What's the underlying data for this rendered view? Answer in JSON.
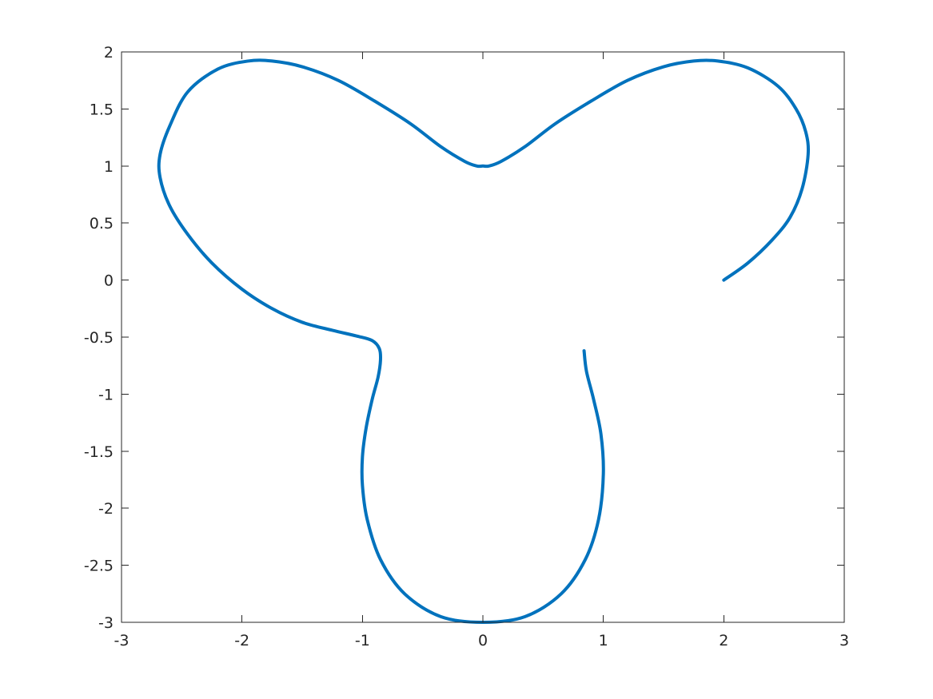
{
  "chart_data": {
    "type": "line",
    "title": "",
    "xlabel": "",
    "ylabel": "",
    "xlim": [
      -3,
      3
    ],
    "ylim": [
      -3,
      2
    ],
    "grid": false,
    "legend": "none",
    "xticks": [
      -3,
      -2,
      -1,
      0,
      1,
      2,
      3
    ],
    "xtick_labels": [
      "-3",
      "-2",
      "-1",
      "0",
      "1",
      "2",
      "3"
    ],
    "yticks": [
      2,
      1.5,
      1,
      0.5,
      0,
      -0.5,
      -1,
      -1.5,
      -2,
      -2.5,
      -3
    ],
    "ytick_labels": [
      "2",
      "1.5",
      "1",
      "0.5",
      "0",
      "-0.5",
      "-1",
      "-1.5",
      "-2",
      "-2.5",
      "-3"
    ],
    "series": [
      {
        "color": "#0072BD",
        "x": [
          2.0,
          2.2,
          2.4,
          2.55,
          2.65,
          2.7,
          2.68,
          2.6,
          2.45,
          2.2,
          1.95,
          1.75,
          1.5,
          1.2,
          0.9,
          0.6,
          0.35,
          0.15,
          0.05,
          0.0,
          -0.05,
          -0.15,
          -0.35,
          -0.6,
          -0.9,
          -1.2,
          -1.5,
          -1.75,
          -1.95,
          -2.2,
          -2.45,
          -2.6,
          -2.68,
          -2.68,
          -2.6,
          -2.45,
          -2.25,
          -2.0,
          -1.75,
          -1.5,
          -1.25,
          -1.05,
          -0.92,
          -0.86,
          -0.85,
          -0.87,
          -0.92,
          -0.97,
          -1.0,
          -1.0,
          -0.96,
          -0.85,
          -0.65,
          -0.35,
          0.0,
          0.35,
          0.65,
          0.85,
          0.96,
          1.0,
          0.98,
          0.92,
          0.86,
          0.84
        ],
        "y": [
          0.0,
          0.15,
          0.35,
          0.55,
          0.8,
          1.1,
          1.3,
          1.5,
          1.7,
          1.86,
          1.92,
          1.92,
          1.87,
          1.75,
          1.57,
          1.37,
          1.17,
          1.04,
          1.0,
          1.0,
          1.0,
          1.04,
          1.17,
          1.37,
          1.57,
          1.75,
          1.87,
          1.92,
          1.92,
          1.85,
          1.65,
          1.35,
          1.1,
          0.9,
          0.65,
          0.4,
          0.15,
          -0.08,
          -0.25,
          -0.37,
          -0.44,
          -0.49,
          -0.53,
          -0.6,
          -0.7,
          -0.85,
          -1.05,
          -1.3,
          -1.55,
          -1.8,
          -2.1,
          -2.45,
          -2.75,
          -2.95,
          -3.0,
          -2.95,
          -2.75,
          -2.45,
          -2.1,
          -1.7,
          -1.35,
          -1.05,
          -0.8,
          -0.62
        ]
      }
    ]
  }
}
